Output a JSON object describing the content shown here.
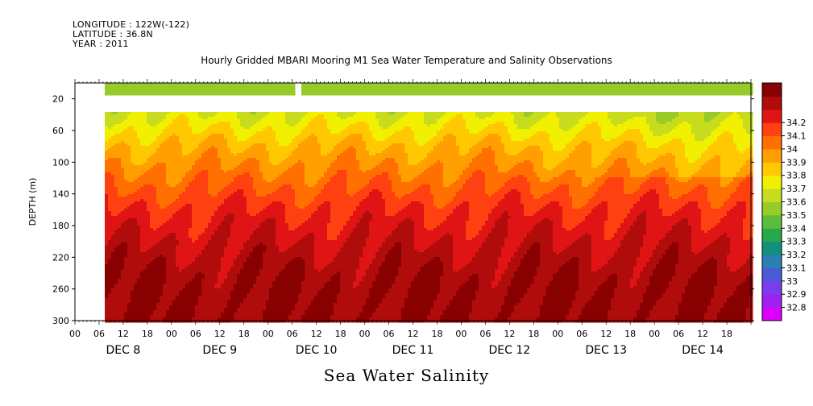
{
  "meta": {
    "longitude": "LONGITUDE : 122W(-122)",
    "latitude": "LATITUDE : 36.8N",
    "year": "YEAR : 2011"
  },
  "title": "Hourly Gridded MBARI Mooring M1 Sea Water Temperature and Salinity Observations",
  "bottom_title": "Sea Water Salinity",
  "chart_data": {
    "type": "heatmap",
    "title": "Hourly Gridded MBARI Mooring M1 Sea Water Temperature and Salinity Observations",
    "variable": "Sea Water Salinity",
    "ylabel": "DEPTH (m)",
    "ylim": [
      300,
      0
    ],
    "y_ticks": [
      20,
      60,
      100,
      140,
      180,
      220,
      260,
      300
    ],
    "x_range_hours": [
      "DEC 7 18:00",
      "DEC 15 00:00"
    ],
    "x_hour_ticks": [
      "00",
      "06",
      "12",
      "18",
      "00",
      "06",
      "12",
      "18",
      "00",
      "06",
      "12",
      "18",
      "00",
      "06",
      "12",
      "18",
      "00",
      "06",
      "12",
      "18",
      "00",
      "06",
      "12",
      "18",
      "00",
      "06",
      "12",
      "18"
    ],
    "x_day_labels": [
      "DEC 8",
      "DEC 9",
      "DEC 10",
      "DEC 11",
      "DEC 12",
      "DEC 13",
      "DEC 14"
    ],
    "colorbar": {
      "levels": [
        32.8,
        32.9,
        33,
        33.1,
        33.2,
        33.3,
        33.4,
        33.5,
        33.6,
        33.7,
        33.8,
        33.9,
        34,
        34.1,
        34.2
      ],
      "colors": [
        "#dd00ff",
        "#a020f0",
        "#7b3cf0",
        "#4a5ad8",
        "#2a80b4",
        "#12907c",
        "#27a84c",
        "#5ebc3c",
        "#97cc28",
        "#c8dc1e",
        "#f0f000",
        "#ffc800",
        "#ffa000",
        "#ff7000",
        "#ff4010",
        "#e01414",
        "#b00c0c",
        "#880000"
      ]
    },
    "data_start": "DEC 7 06:00",
    "gap_depth_m": [
      15,
      34
    ],
    "gap_time": "DEC 10 06:00",
    "profile": [
      {
        "depth": 10,
        "salinity": 33.4
      },
      {
        "depth": 40,
        "salinity": 33.5
      },
      {
        "depth": 80,
        "salinity": 33.7
      },
      {
        "depth": 120,
        "salinity": 33.85
      },
      {
        "depth": 160,
        "salinity": 34.0
      },
      {
        "depth": 200,
        "salinity": 34.1
      },
      {
        "depth": 240,
        "salinity": 34.18
      },
      {
        "depth": 260,
        "salinity": 34.2
      },
      {
        "depth": 300,
        "salinity": 34.2
      }
    ]
  }
}
